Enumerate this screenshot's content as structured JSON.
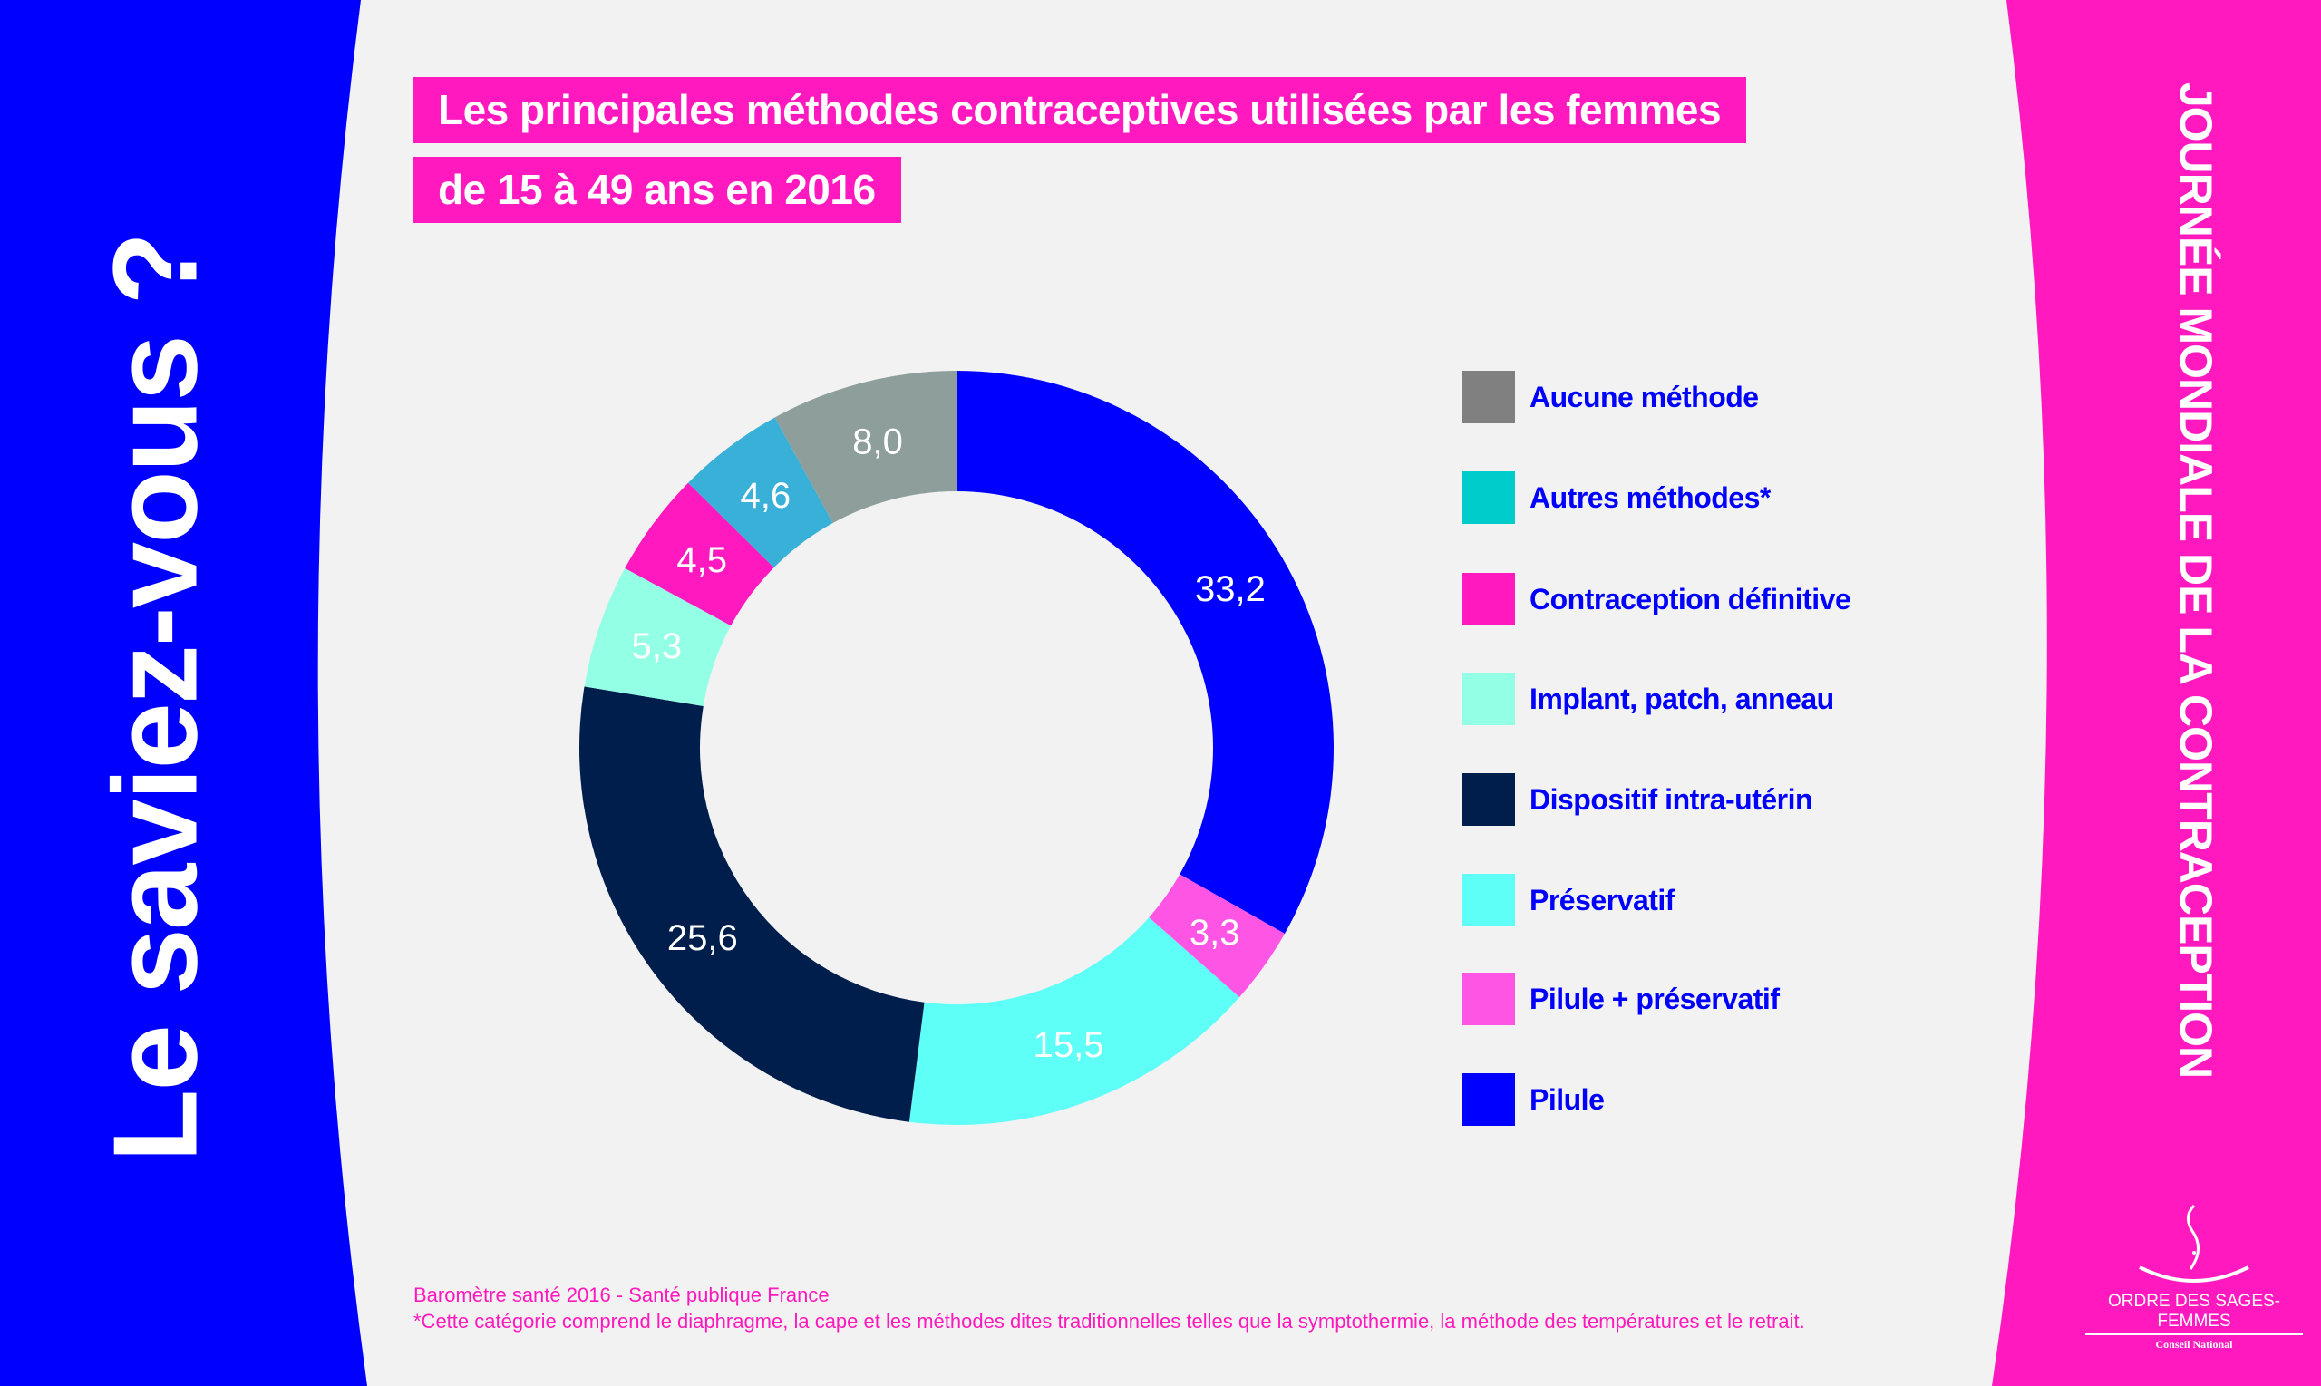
{
  "colors": {
    "background": "#f2f2f2",
    "left_panel": "#0000ff",
    "right_panel": "#ff19be",
    "title_bg": "#ff19be",
    "legend_text": "#0000ff"
  },
  "side_left_text": "Le saviez-vous ?",
  "side_right_text": "JOURNÉE MONDIALE DE LA CONTRACEPTION",
  "title_lines": [
    "Les principales méthodes contraceptives utilisées par les femmes",
    "de 15 à 49 ans en 2016"
  ],
  "chart_data": {
    "type": "pie",
    "variant": "donut",
    "title": "Les principales méthodes contraceptives utilisées par les femmes de 15 à 49 ans en 2016",
    "start": "top, clockwise",
    "slices": [
      {
        "label": "Pilule",
        "value": 33.2,
        "display": "33,2",
        "color": "#0000ff"
      },
      {
        "label": "Pilule + préservatif",
        "value": 3.3,
        "display": "3,3",
        "color": "#ff55e4"
      },
      {
        "label": "Préservatif",
        "value": 15.5,
        "display": "15,5",
        "color": "#5dfff7"
      },
      {
        "label": "Dispositif intra-utérin",
        "value": 25.6,
        "display": "25,6",
        "color": "#001e4b"
      },
      {
        "label": "Implant, patch, anneau",
        "value": 5.3,
        "display": "5,3",
        "color": "#93ffe4"
      },
      {
        "label": "Contraception définitive",
        "value": 4.5,
        "display": "4,5",
        "color": "#ff19be"
      },
      {
        "label": "Autres méthodes*",
        "value": 4.6,
        "display": "4,6",
        "color": "#38b0d8"
      },
      {
        "label": "Aucune méthode",
        "value": 8.0,
        "display": "8,0",
        "color": "#8e9e9a"
      }
    ],
    "legend": {
      "placement": "right",
      "entries": [
        {
          "label": "Aucune méthode",
          "color": "#808080"
        },
        {
          "label": "Autres méthodes*",
          "color": "#00cccc"
        },
        {
          "label": "Contraception définitive",
          "color": "#ff19be"
        },
        {
          "label": "Implant, patch, anneau",
          "color": "#93ffe4"
        },
        {
          "label": "Dispositif intra-utérin",
          "color": "#001e4b"
        },
        {
          "label": "Préservatif",
          "color": "#5dfff7"
        },
        {
          "label": "Pilule + préservatif",
          "color": "#ff55e4"
        },
        {
          "label": "Pilule",
          "color": "#0000ff"
        }
      ]
    }
  },
  "footer": {
    "source": "Baromètre santé 2016 - Santé publique France",
    "note": "*Cette catégorie comprend le diaphragme, la cape et les méthodes dites traditionnelles telles que la symptothermie, la méthode des températures et le retrait."
  },
  "logo": {
    "name": "ORDRE DES SAGES-FEMMES",
    "sub": "Conseil National"
  }
}
